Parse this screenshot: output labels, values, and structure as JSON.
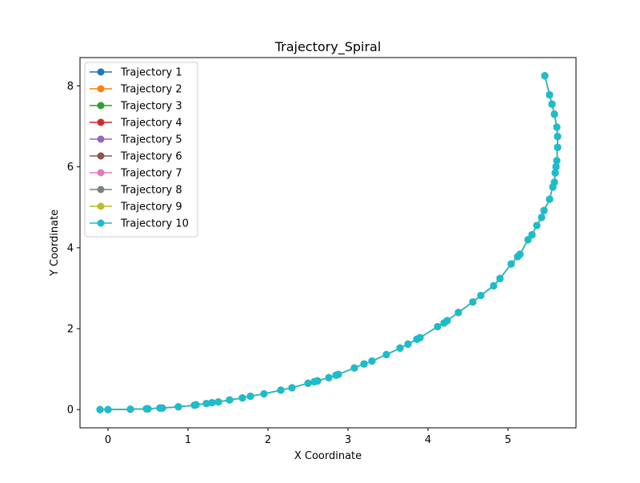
{
  "chart_data": {
    "type": "line",
    "title": "Trajectory_Spiral",
    "xlabel": "X Coordinate",
    "ylabel": "Y Coordinate",
    "xlim": [
      -0.35,
      5.85
    ],
    "ylim": [
      -0.45,
      8.7
    ],
    "xticks": [
      "0",
      "1",
      "2",
      "3",
      "4",
      "5"
    ],
    "yticks": [
      "0",
      "2",
      "4",
      "6",
      "8"
    ],
    "grid": false,
    "legend_position": "upper-left",
    "marker": "circle",
    "series": [
      {
        "name": "Trajectory 1",
        "color": "#1f77b4"
      },
      {
        "name": "Trajectory 2",
        "color": "#ff7f0e"
      },
      {
        "name": "Trajectory 3",
        "color": "#2ca02c"
      },
      {
        "name": "Trajectory 4",
        "color": "#d62728"
      },
      {
        "name": "Trajectory 5",
        "color": "#9467bd"
      },
      {
        "name": "Trajectory 6",
        "color": "#8c564b"
      },
      {
        "name": "Trajectory 7",
        "color": "#e377c2"
      },
      {
        "name": "Trajectory 8",
        "color": "#7f7f7f"
      },
      {
        "name": "Trajectory 9",
        "color": "#bcbd22"
      },
      {
        "name": "Trajectory 10",
        "color": "#17becf"
      }
    ],
    "points": [
      [
        -0.1,
        0.0
      ],
      [
        0.0,
        0.0
      ],
      [
        0.28,
        0.01
      ],
      [
        0.48,
        0.02
      ],
      [
        0.5,
        0.02
      ],
      [
        0.65,
        0.04
      ],
      [
        0.68,
        0.04
      ],
      [
        0.88,
        0.07
      ],
      [
        1.08,
        0.11
      ],
      [
        1.1,
        0.12
      ],
      [
        1.23,
        0.15
      ],
      [
        1.3,
        0.17
      ],
      [
        1.38,
        0.19
      ],
      [
        1.52,
        0.24
      ],
      [
        1.68,
        0.29
      ],
      [
        1.78,
        0.33
      ],
      [
        1.95,
        0.39
      ],
      [
        2.16,
        0.48
      ],
      [
        2.3,
        0.54
      ],
      [
        2.5,
        0.65
      ],
      [
        2.58,
        0.69
      ],
      [
        2.62,
        0.71
      ],
      [
        2.76,
        0.79
      ],
      [
        2.85,
        0.85
      ],
      [
        2.88,
        0.87
      ],
      [
        3.08,
        1.03
      ],
      [
        3.2,
        1.13
      ],
      [
        3.3,
        1.2
      ],
      [
        3.48,
        1.36
      ],
      [
        3.65,
        1.52
      ],
      [
        3.75,
        1.62
      ],
      [
        3.86,
        1.74
      ],
      [
        3.9,
        1.78
      ],
      [
        4.12,
        2.05
      ],
      [
        4.2,
        2.14
      ],
      [
        4.24,
        2.2
      ],
      [
        4.38,
        2.4
      ],
      [
        4.56,
        2.66
      ],
      [
        4.66,
        2.82
      ],
      [
        4.82,
        3.06
      ],
      [
        4.9,
        3.24
      ],
      [
        5.04,
        3.6
      ],
      [
        5.12,
        3.78
      ],
      [
        5.15,
        3.84
      ],
      [
        5.25,
        4.2
      ],
      [
        5.3,
        4.32
      ],
      [
        5.36,
        4.55
      ],
      [
        5.42,
        4.75
      ],
      [
        5.45,
        4.92
      ],
      [
        5.52,
        5.2
      ],
      [
        5.56,
        5.5
      ],
      [
        5.58,
        5.62
      ],
      [
        5.59,
        5.85
      ],
      [
        5.6,
        6.0
      ],
      [
        5.61,
        6.15
      ],
      [
        5.62,
        6.48
      ],
      [
        5.62,
        6.75
      ],
      [
        5.61,
        6.98
      ],
      [
        5.58,
        7.3
      ],
      [
        5.55,
        7.55
      ],
      [
        5.52,
        7.78
      ],
      [
        5.46,
        8.25
      ]
    ]
  }
}
